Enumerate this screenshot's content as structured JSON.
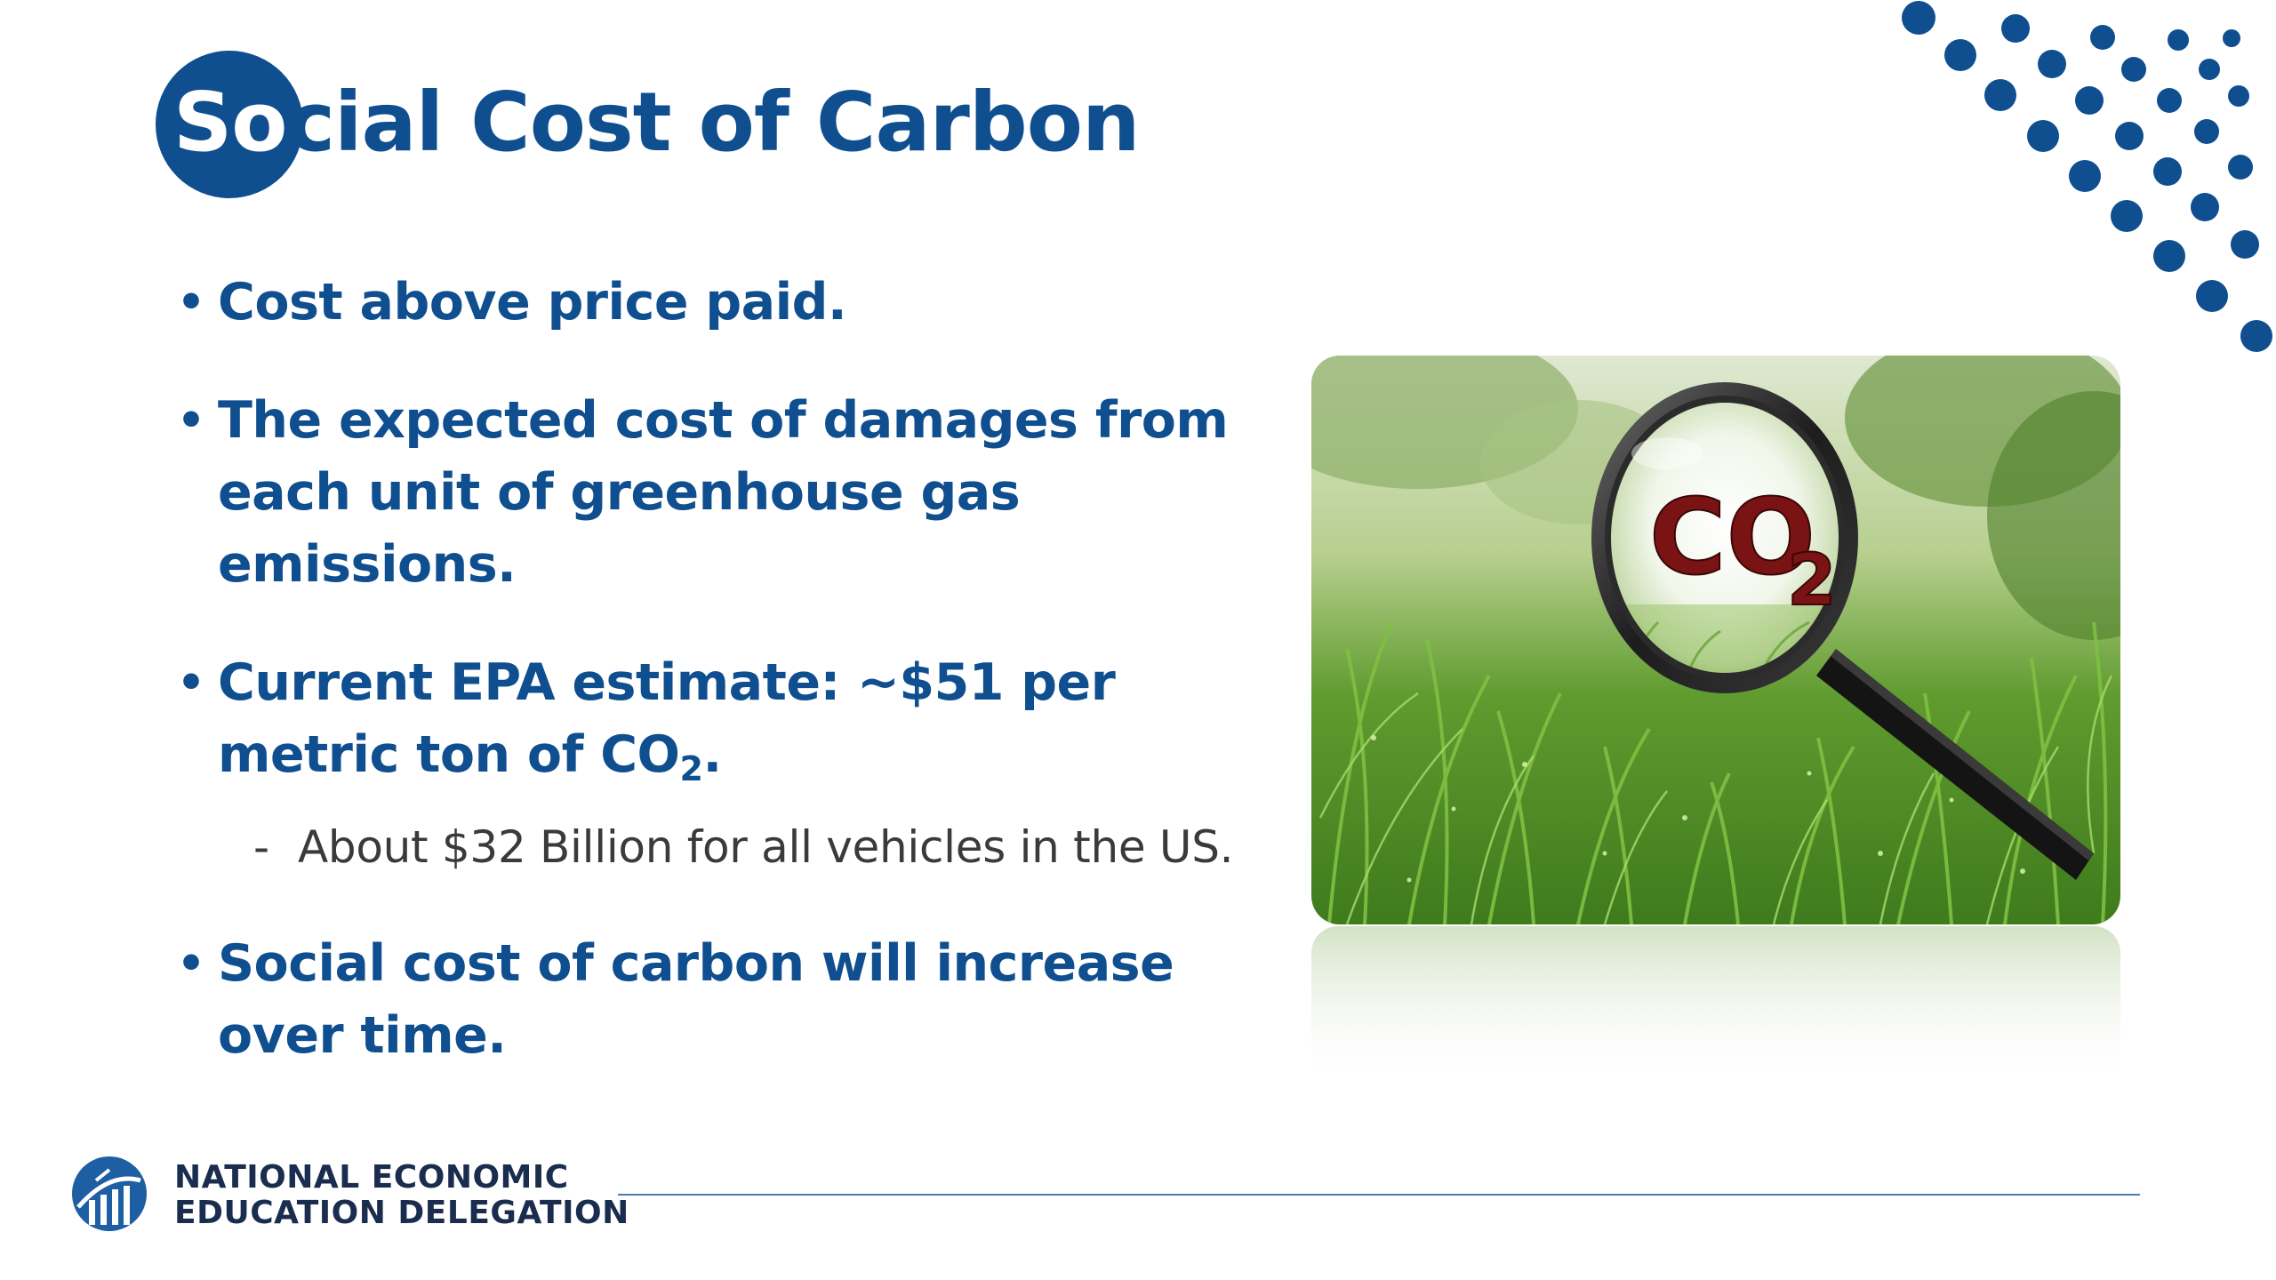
{
  "slide": {
    "title_highlight": "So",
    "title_rest": "cial Cost of Carbon",
    "bullets": [
      {
        "text": "Cost above price paid."
      },
      {
        "text": "The expected cost of damages from each unit of greenhouse gas emissions."
      },
      {
        "text_before_sub": "Current EPA estimate: ~$51 per metric ton of CO",
        "sub": "2",
        "text_after_sub": "."
      },
      {
        "text": "Social cost of carbon will increase over time."
      }
    ],
    "subbullet": {
      "dash": "-",
      "text": "About $32 Billion for all vehicles in the US."
    },
    "bullet_symbol": "•",
    "image": {
      "magnifier_text": "CO",
      "magnifier_sub": "2"
    }
  },
  "footer": {
    "org_line1": "NATIONAL ECONOMIC",
    "org_line2": "EDUCATION DELEGATION"
  },
  "colors": {
    "brand_blue": "#0f4e8f",
    "subtext": "#3a3a3a",
    "footer_line": "#4f7bb0"
  },
  "icons": {
    "logo": "need-logo-icon",
    "dots": "decorative-dot-pattern"
  }
}
